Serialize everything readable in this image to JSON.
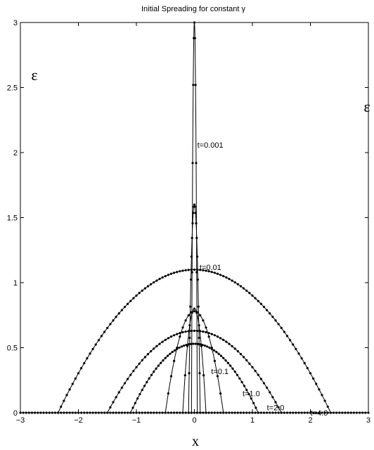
{
  "chart_data": {
    "type": "line",
    "title": "Initial Spreading for constant γ",
    "xlabel": "x",
    "ylabel": "ε",
    "right_label": "ε",
    "xlim": [
      -3,
      3
    ],
    "ylim": [
      0,
      3
    ],
    "x_ticks": [
      -3,
      -2,
      -1,
      0,
      1,
      2,
      3
    ],
    "y_ticks": [
      0,
      0.5,
      1,
      1.5,
      2,
      2.5,
      3
    ],
    "grid": false,
    "series": [
      {
        "name": "t=0.001",
        "peak": 3.0,
        "half_width": 0.05,
        "marker_step": 0.01,
        "label_at": [
          0.05,
          2.06
        ]
      },
      {
        "name": "t=0.01",
        "peak": 1.6,
        "half_width": 0.1,
        "marker_step": 0.01,
        "label_at": [
          0.09,
          1.12
        ]
      },
      {
        "name": "t=0.1",
        "peak": 0.8,
        "half_width": 0.2,
        "marker_step": 0.04,
        "label_at": [
          0.72,
          0.0
        ]
      },
      {
        "name": "t=1.0",
        "peak": 0.78,
        "half_width": 0.5,
        "marker_step": 0.05,
        "label_at": [
          0.29,
          0.32
        ]
      },
      {
        "name": "t=2.0",
        "peak": 0.63,
        "half_width": 1.5,
        "marker_step": 0.05,
        "label_at": [
          1.58,
          0.04
        ]
      },
      {
        "name": "t=4.0",
        "peak": 0.53,
        "half_width": 1.1,
        "marker_step": 0.04,
        "label_at": [
          0.83,
          0.15
        ]
      },
      {
        "name": "",
        "peak": 1.1,
        "half_width": 2.35,
        "marker_step": 0.05,
        "label_at": null
      }
    ],
    "annotations": [
      {
        "text": "t=0.001",
        "x": 0.05,
        "y": 2.06
      },
      {
        "text": "t=0.01",
        "x": 0.09,
        "y": 1.12
      },
      {
        "text": "t=0.1",
        "x": 0.29,
        "y": 0.32
      },
      {
        "text": "t=1.0",
        "x": 0.83,
        "y": 0.15
      },
      {
        "text": "t=2.0",
        "x": 1.25,
        "y": 0.04
      },
      {
        "text": "t=4.0",
        "x": 2.0,
        "y": 0.0
      }
    ],
    "baseline_markers": {
      "y": 0,
      "x_start": -3,
      "x_end": 3,
      "step": 0.05
    }
  }
}
